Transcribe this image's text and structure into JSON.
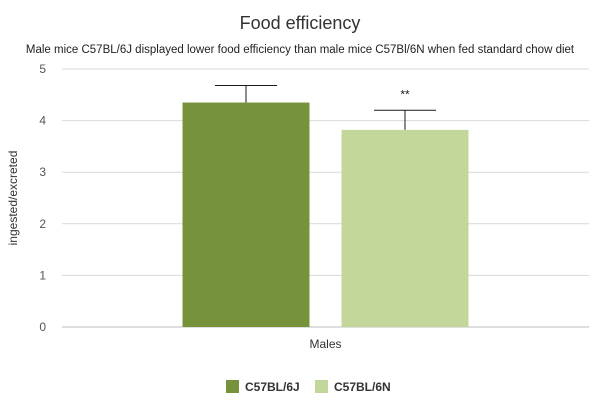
{
  "chart_data": {
    "type": "bar",
    "title": "Food efficiency",
    "subtitle": "Male mice C57BL/6J displayed lower food efficiency than male mice C57Bl/6N when fed standard chow diet",
    "xlabel": "",
    "ylabel": "ingested/excreted",
    "categories": [
      "Males"
    ],
    "ylim": [
      0,
      5
    ],
    "yticks": [
      "0",
      "1",
      "2",
      "3",
      "4",
      "5"
    ],
    "grid": true,
    "legend_position": "bottom",
    "series": [
      {
        "name": "C57BL/6J",
        "values": [
          4.35
        ],
        "error_plus": [
          0.33
        ],
        "color": "#76933c",
        "annotation": ""
      },
      {
        "name": "C57BL/6N",
        "values": [
          3.82
        ],
        "error_plus": [
          0.38
        ],
        "color": "#c4d79b",
        "annotation": "**"
      }
    ]
  }
}
